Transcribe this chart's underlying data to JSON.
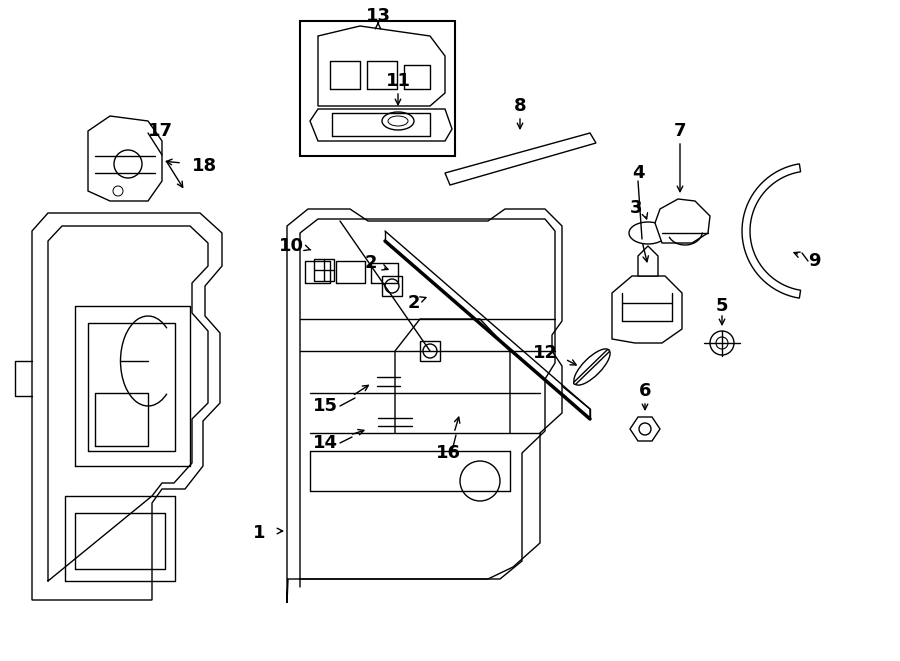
{
  "bg": "#ffffff",
  "lc": "#000000",
  "lw": 1.0,
  "fig_w": 9.0,
  "fig_h": 6.61,
  "xlim": [
    0,
    900
  ],
  "ylim": [
    0,
    661
  ]
}
